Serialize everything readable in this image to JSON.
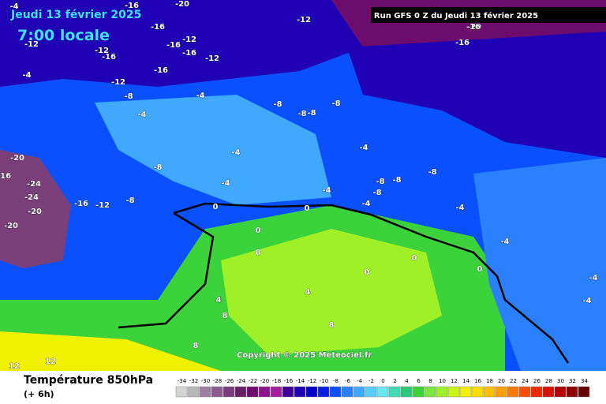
{
  "header": {
    "date": "Jeudi 13 février 2025",
    "time": "7:00 locale",
    "run": "Run GFS 0 Z du Jeudi 13 février 2025",
    "copyright": "Copyright © 2025 Meteociel.fr"
  },
  "footer": {
    "title": "Température 850hPa",
    "step": "(+ 6h)"
  },
  "legend": {
    "ticks": [
      "-34",
      "-32",
      "-30",
      "-28",
      "-26",
      "-24",
      "-22",
      "-20",
      "-18",
      "-16",
      "-14",
      "-12",
      "-10",
      "-8",
      "-6",
      "-4",
      "-2",
      "0",
      "2",
      "4",
      "6",
      "8",
      "10",
      "12",
      "14",
      "16",
      "18",
      "20",
      "22",
      "24",
      "26",
      "28",
      "30",
      "32",
      "34"
    ],
    "colors": [
      "#d4d4d4",
      "#b8b8b8",
      "#a080a0",
      "#8c5c8c",
      "#7a3e7a",
      "#662066",
      "#6e0c6e",
      "#8c148c",
      "#a01ea0",
      "#3c0096",
      "#2000b4",
      "#0000c8",
      "#0a1ee6",
      "#0a50ff",
      "#2a80ff",
      "#40a8ff",
      "#58cdff",
      "#6ae6f0",
      "#40dcb4",
      "#2ac878",
      "#3cd23c",
      "#78e63c",
      "#a0f028",
      "#c8f514",
      "#f0f000",
      "#ffdc00",
      "#ffbe00",
      "#ffa000",
      "#ff7800",
      "#ff5000",
      "#f02800",
      "#d21400",
      "#b40000",
      "#8c0000",
      "#640000"
    ]
  },
  "map": {
    "labels": [
      "-16",
      "-20",
      "-16",
      "-16",
      "-12",
      "-16",
      "-12",
      "-16",
      "-12",
      "-16",
      "-12",
      "-16",
      "-4",
      "-4",
      "-12",
      "-8",
      "-8",
      "-8",
      "-4",
      "-4",
      "-8",
      "-8",
      "-8",
      "-4",
      "-4",
      "-8",
      "-16",
      "-20",
      "-24",
      "-24",
      "-20",
      "-20",
      "-16",
      "-12",
      "-8",
      "-4",
      "-4",
      "0",
      "0",
      "0",
      "8",
      "4",
      "8",
      "0",
      "4",
      "8",
      "-4",
      "-8",
      "-8",
      "-8",
      "-4",
      "-4",
      "-4",
      "-4",
      "0",
      "0",
      "12",
      "12",
      "8",
      "-12",
      "-20",
      "-16"
    ]
  }
}
